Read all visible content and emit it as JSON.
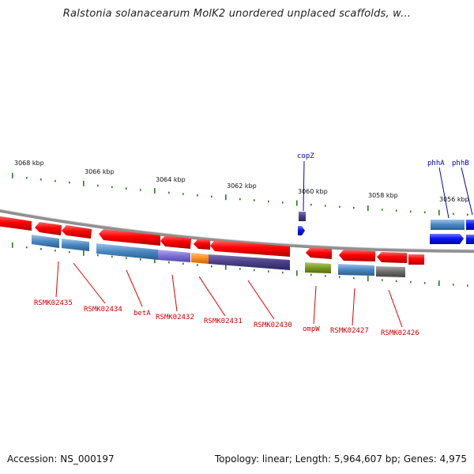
{
  "title": "Ralstonia solanacearum MolK2 unordered unplaced scaffolds, w...",
  "footer": {
    "accession": "Accession: NS_000197",
    "summary": "Topology: linear; Length: 5,964,607 bp; Genes: 4,975"
  },
  "colors": {
    "forward_gene": "#ff0000",
    "reverse_gene_blue": "#0a16f0",
    "cds_blue": "#4a86c0",
    "cds_purple": "#7b6fd6",
    "cds_orange": "#ff8c1a",
    "cds_dark_purple": "#4a3f86",
    "cds_olive": "#7a9a22",
    "cds_gray": "#6b6b6b",
    "ruler_ticks": "#2a7a20",
    "backbone": "#9a9a9a",
    "red_label": "#cc0000",
    "blue_label": "#0000cc"
  },
  "ruler": {
    "tick_labels": [
      "3068 kbp",
      "3066 kbp",
      "3064 kbp",
      "3062 kbp",
      "3060 kbp",
      "3058 kbp",
      "3056 kbp"
    ]
  },
  "gene_labels_top": [
    "copZ",
    "phhA",
    "phhB"
  ],
  "gene_labels_bottom": [
    "RSMK02435",
    "RSMK02434",
    "betA",
    "RSMK02432",
    "RSMK02431",
    "RSMK02430",
    "ompW",
    "RSMK02427",
    "RSMK02426"
  ]
}
